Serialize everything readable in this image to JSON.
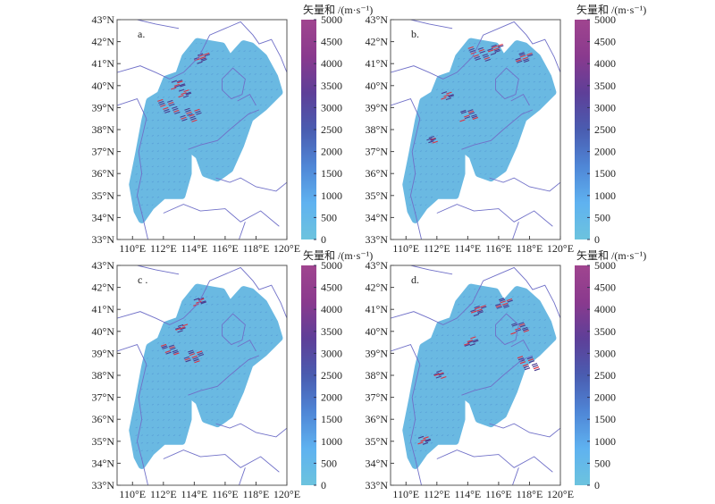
{
  "figure": {
    "colorbar_title": "矢量和 /(m·s⁻¹)",
    "colorbar_ticks": [
      "0",
      "500",
      "1000",
      "1500",
      "2000",
      "2500",
      "3000",
      "3500",
      "4000",
      "4500",
      "5000"
    ],
    "colorbar_range": [
      0,
      5000
    ],
    "colormap": [
      "#6cc3de",
      "#5fb2f0",
      "#4f86d6",
      "#4a5cb0",
      "#5e3f98",
      "#8a3a8e",
      "#a0458f"
    ],
    "lat_ticks": [
      "33°N",
      "34°N",
      "35°N",
      "36°N",
      "37°N",
      "38°N",
      "39°N",
      "40°N",
      "41°N",
      "42°N",
      "43°N"
    ],
    "lon_ticks": [
      "110°E",
      "112°E",
      "114°E",
      "116°E",
      "118°E",
      "120°E"
    ],
    "lon_range": [
      109,
      120
    ],
    "lat_range": [
      33,
      43
    ],
    "land_color": "#6ab9e2",
    "border_color": "#7070c8",
    "panels": [
      {
        "label": "a.",
        "hotspots": [
          [
            112.2,
            39.0,
            1.0
          ],
          [
            113.6,
            38.6,
            1.0
          ],
          [
            112.8,
            40.0,
            0.6
          ],
          [
            114.3,
            41.2,
            0.7
          ],
          [
            113.2,
            39.6,
            0.5
          ]
        ]
      },
      {
        "label": "b.",
        "hotspots": [
          [
            114.6,
            41.4,
            1.0
          ],
          [
            117.5,
            41.2,
            0.8
          ],
          [
            113.9,
            38.6,
            0.8
          ],
          [
            115.6,
            41.6,
            0.7
          ],
          [
            112.5,
            39.5,
            0.5
          ],
          [
            111.5,
            37.5,
            0.4
          ]
        ]
      },
      {
        "label": "c .",
        "hotspots": [
          [
            112.3,
            39.1,
            0.8
          ],
          [
            113.8,
            38.8,
            0.9
          ],
          [
            114.2,
            41.3,
            0.5
          ],
          [
            113,
            40.1,
            0.5
          ]
        ]
      },
      {
        "label": "d.",
        "hotspots": [
          [
            117.8,
            38.5,
            1.0
          ],
          [
            116.2,
            41.2,
            0.8
          ],
          [
            117.2,
            40.1,
            0.8
          ],
          [
            114.5,
            40.9,
            0.7
          ],
          [
            111.0,
            35.0,
            0.5
          ],
          [
            112.0,
            38.0,
            0.5
          ],
          [
            114.0,
            39.5,
            0.6
          ]
        ]
      }
    ]
  }
}
